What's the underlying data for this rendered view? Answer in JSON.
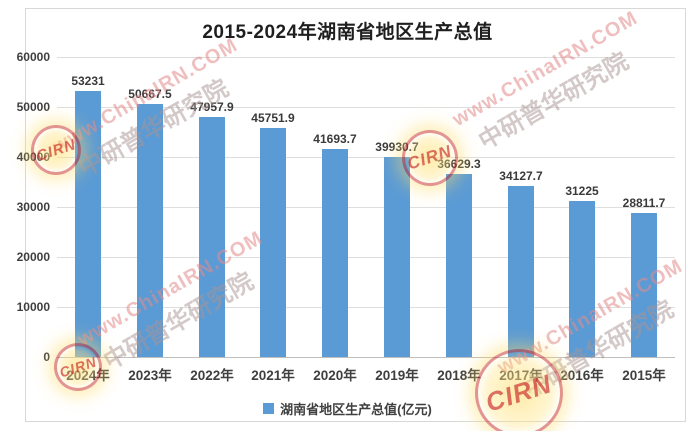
{
  "title": "2015-2024年湖南省地区生产总值",
  "legend": {
    "label": "湖南省地区生产总值(亿元)",
    "marker_color": "#5B9BD5"
  },
  "watermark": {
    "line1": "www.ChinaIRN.COM",
    "line2": "中研普华研究院",
    "stamp_text": "CIRN"
  },
  "colors": {
    "bar": "#5B9BD5",
    "gridline": "#DEDEDE",
    "axis_line": "#BFBFBF",
    "label_text": "#3F3F3F",
    "title_text": "#1F1F1F",
    "frame_border": "#D8D8D8",
    "watermark_pink": "#E28A8A",
    "watermark_gray": "#AA9494",
    "stamp_red": "#C62C2C",
    "stamp_glow_yellow": "#FFE27A"
  },
  "chart_data": {
    "type": "bar",
    "title": "2015-2024年湖南省地区生产总值",
    "categories": [
      "2024年",
      "2023年",
      "2022年",
      "2021年",
      "2020年",
      "2019年",
      "2018年",
      "2017年",
      "2016年",
      "2015年"
    ],
    "values": [
      53231,
      50667.5,
      47957.9,
      45751.9,
      41693.7,
      39930.7,
      36629.3,
      34127.7,
      31225,
      28811.7
    ],
    "data_labels": [
      "53231",
      "50667.5",
      "47957.9",
      "45751.9",
      "41693.7",
      "39930.7",
      "36629.3",
      "34127.7",
      "31225",
      "28811.7"
    ],
    "series_name": "湖南省地区生产总值(亿元)",
    "xlabel": "",
    "ylabel": "",
    "ylim": [
      0,
      60000
    ],
    "yticks": [
      0,
      10000,
      20000,
      30000,
      40000,
      50000,
      60000
    ],
    "grid": true,
    "legend_position": "bottom",
    "bar_color": "#5B9BD5"
  }
}
